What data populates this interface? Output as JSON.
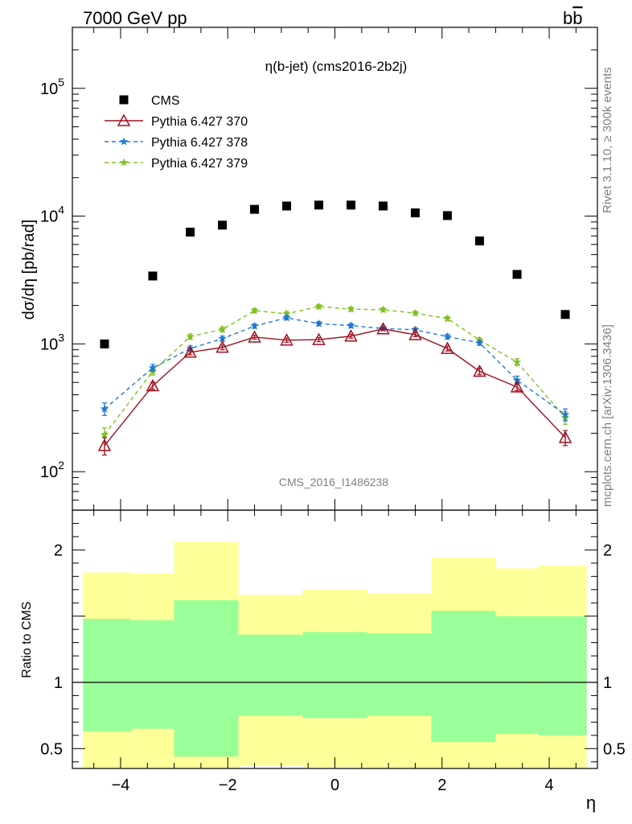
{
  "header": {
    "left": "7000 GeV pp",
    "right": "b",
    "right_bar": "b"
  },
  "side_labels": {
    "rivet": "Rivet 3.1.10, ≥ 300k events",
    "mcplots": "mcplots.cern.ch [arXiv:1306.3436]"
  },
  "chart_data": [
    {
      "type": "scatter",
      "title": "η(b-jet) (cms2016-2b2j)",
      "watermark": "CMS_2016_I1486238",
      "ylabel": "dσ/dη [pb/rad]",
      "xlabel": "",
      "xlim": [
        -4.9,
        4.9
      ],
      "ylim": [
        50,
        300000
      ],
      "yscale": "log",
      "xticks": [
        -4,
        -2,
        0,
        2,
        4
      ],
      "yticks": [
        {
          "value": 100,
          "base": "10",
          "exp": "2"
        },
        {
          "value": 1000,
          "base": "10",
          "exp": "3"
        },
        {
          "value": 10000,
          "base": "10",
          "exp": "4"
        },
        {
          "value": 100000,
          "base": "10",
          "exp": "5"
        }
      ],
      "legend_position": "top-left",
      "x": [
        -4.3,
        -3.4,
        -2.7,
        -2.1,
        -1.5,
        -0.9,
        -0.3,
        0.3,
        0.9,
        1.5,
        2.1,
        2.7,
        3.4,
        4.3
      ],
      "series": [
        {
          "name": "CMS",
          "color": "#000000",
          "marker": "square",
          "values": [
            1000,
            3400,
            7500,
            8500,
            11300,
            12000,
            12200,
            12200,
            12000,
            10600,
            10100,
            6400,
            3500,
            1700
          ]
        },
        {
          "name": "Pythia 6.427 370",
          "color": "#a01020",
          "marker": "triangle",
          "line": "solid",
          "values": [
            160,
            470,
            860,
            940,
            1130,
            1070,
            1080,
            1150,
            1310,
            1180,
            920,
            610,
            460,
            185
          ],
          "errors": [
            25,
            30,
            40,
            40,
            40,
            40,
            40,
            40,
            40,
            40,
            40,
            35,
            30,
            25
          ]
        },
        {
          "name": "Pythia 6.427 378",
          "color": "#1f78d4",
          "marker": "star",
          "line": "dashed",
          "values": [
            310,
            650,
            920,
            1100,
            1380,
            1600,
            1440,
            1390,
            1320,
            1290,
            1140,
            1020,
            520,
            280
          ],
          "errors": [
            35,
            40,
            45,
            50,
            55,
            60,
            55,
            55,
            50,
            50,
            50,
            45,
            40,
            30
          ]
        },
        {
          "name": "Pythia 6.427 379",
          "color": "#80c020",
          "marker": "star",
          "line": "dashed",
          "values": [
            195,
            610,
            1140,
            1300,
            1820,
            1720,
            1960,
            1870,
            1850,
            1740,
            1580,
            1070,
            720,
            265
          ],
          "errors": [
            25,
            40,
            55,
            60,
            70,
            70,
            75,
            70,
            70,
            65,
            60,
            50,
            45,
            30
          ]
        }
      ]
    },
    {
      "type": "area",
      "ylabel": "Ratio to CMS",
      "xlabel": "η",
      "xlim": [
        -4.9,
        4.9
      ],
      "ylim": [
        0.35,
        2.3
      ],
      "xticks": [
        -4,
        -2,
        0,
        2,
        4
      ],
      "yticks": [
        0.5,
        1,
        2
      ],
      "reference_line": 1,
      "bins": [
        -4.7,
        -3.8,
        -3.0,
        -1.8,
        -0.6,
        0.6,
        1.8,
        3.0,
        3.8,
        4.7
      ],
      "band_colors": {
        "total": "#ffff99",
        "stat": "#99ff99"
      },
      "bands": [
        {
          "outer": [
            0.28,
            1.83
          ],
          "inner": [
            0.63,
            1.48
          ]
        },
        {
          "outer": [
            0.28,
            1.82
          ],
          "inner": [
            0.65,
            1.47
          ]
        },
        {
          "outer": [
            0.28,
            2.06
          ],
          "inner": [
            0.44,
            1.62
          ]
        },
        {
          "outer": [
            0.37,
            1.66
          ],
          "inner": [
            0.75,
            1.36
          ]
        },
        {
          "outer": [
            0.36,
            1.7
          ],
          "inner": [
            0.73,
            1.38
          ]
        },
        {
          "outer": [
            0.35,
            1.67
          ],
          "inner": [
            0.75,
            1.37
          ]
        },
        {
          "outer": [
            0.28,
            1.94
          ],
          "inner": [
            0.55,
            1.54
          ]
        },
        {
          "outer": [
            0.28,
            1.86
          ],
          "inner": [
            0.61,
            1.5
          ]
        },
        {
          "outer": [
            0.28,
            1.88
          ],
          "inner": [
            0.6,
            1.5
          ]
        }
      ]
    }
  ]
}
